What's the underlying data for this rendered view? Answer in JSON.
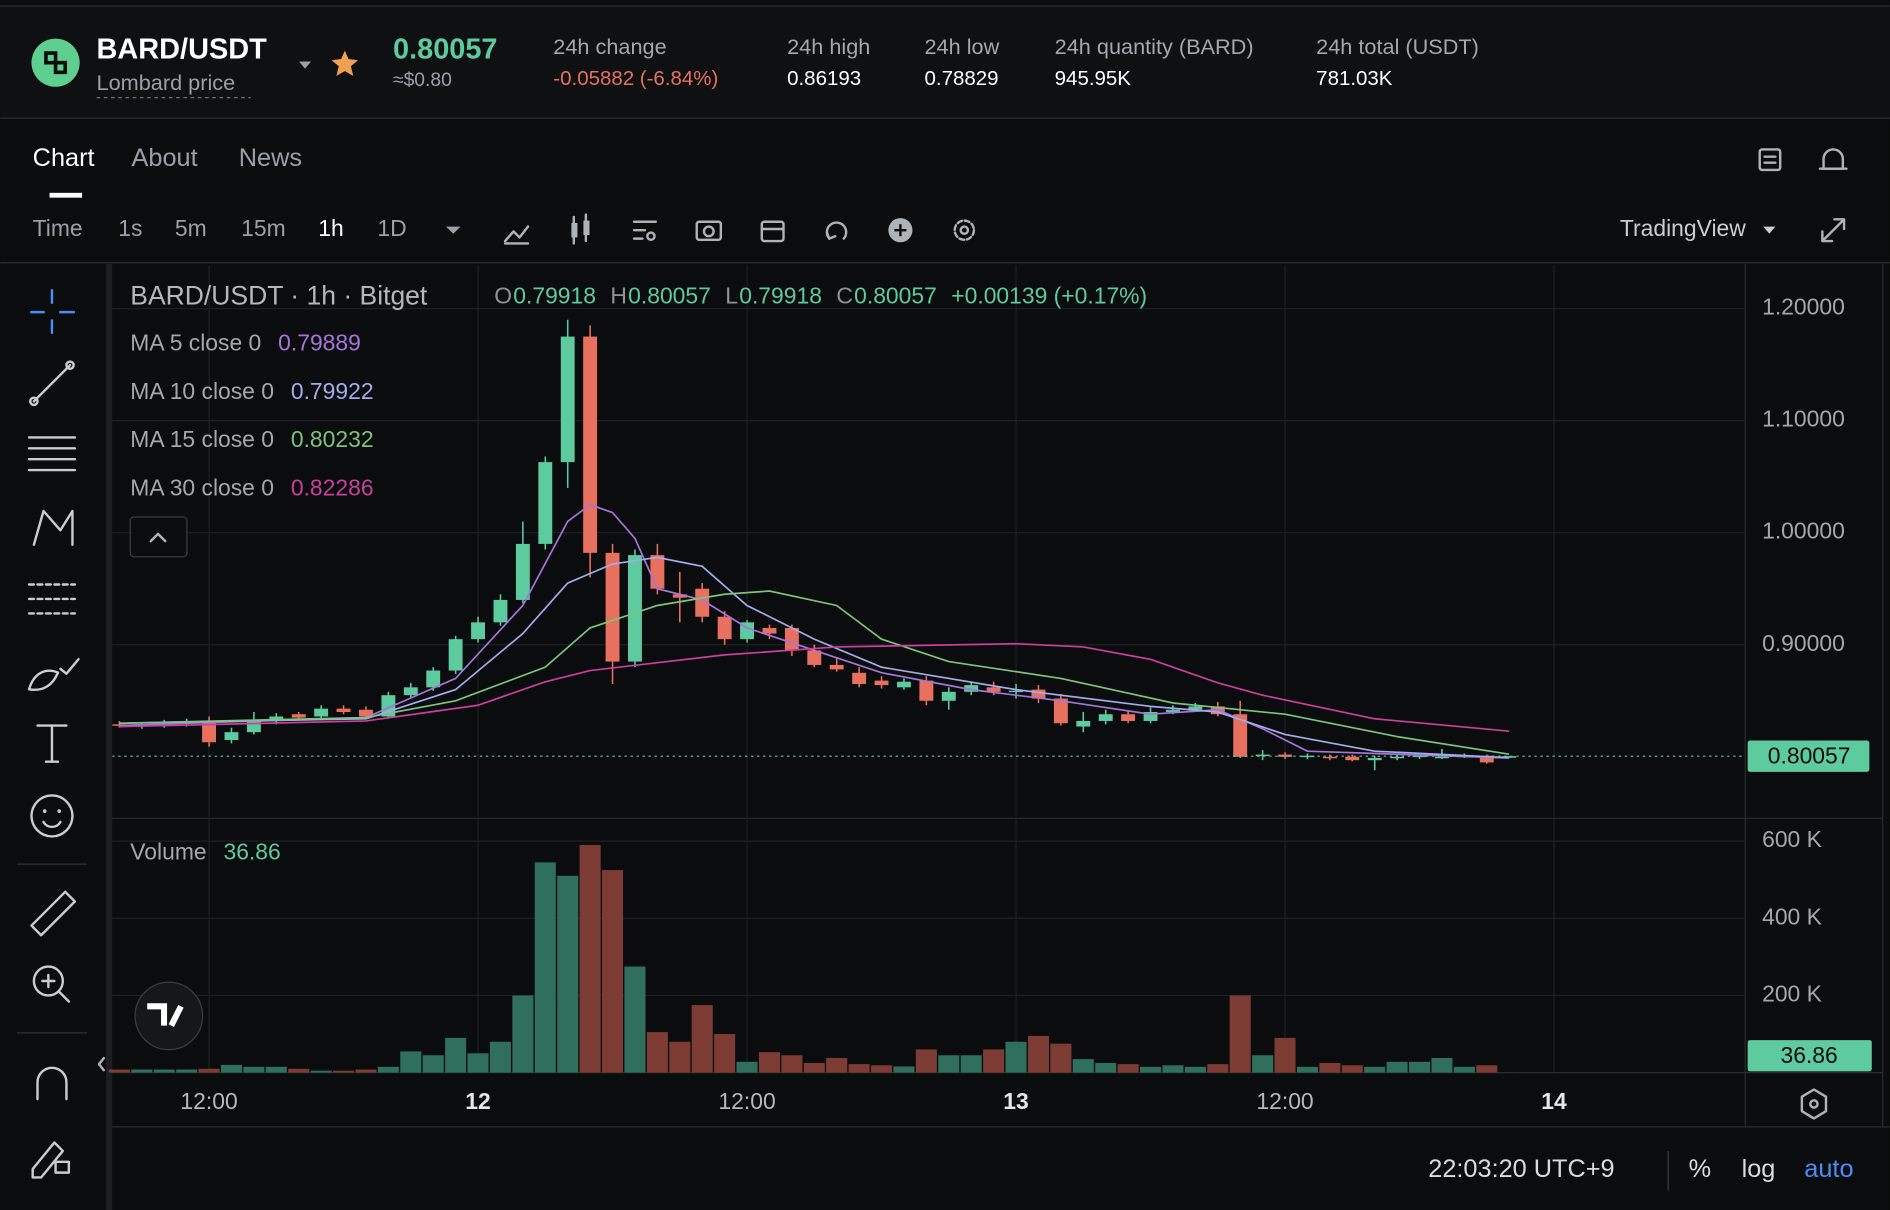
{
  "header": {
    "pair": "BARD/USDT",
    "subtitle": "Lombard price",
    "price": "0.80057",
    "price_usd": "≈$0.80",
    "stats": [
      {
        "label": "24h change",
        "value": "-0.05882 (-6.84%)"
      },
      {
        "label": "24h high",
        "value": "0.86193"
      },
      {
        "label": "24h low",
        "value": "0.78829"
      },
      {
        "label": "24h quantity (BARD)",
        "value": "945.95K"
      },
      {
        "label": "24h total (USDT)",
        "value": "781.03K"
      }
    ]
  },
  "tabs": [
    "Chart",
    "About",
    "News"
  ],
  "toolbar": {
    "intervals": [
      "Time",
      "1s",
      "5m",
      "15m",
      "1h",
      "1D"
    ],
    "provider": "TradingView"
  },
  "footer": {
    "time": "22:03:20 UTC+9",
    "percent": "%",
    "log": "log",
    "auto": "auto"
  },
  "chart_data": {
    "type": "candlestick",
    "title": "BARD/USDT · 1h · Bitget",
    "ohlc_labels": [
      "O",
      "H",
      "L",
      "C"
    ],
    "change": "+0.00139 (+0.17%)",
    "up_color": "#5ecaa0",
    "down_color": "#e8705f",
    "volume_up_color": "#2f6f5b",
    "volume_down_color": "#7c3c33",
    "grid": true,
    "open": [
      0.829,
      0.828,
      0.829,
      0.83,
      0.832,
      0.815,
      0.822,
      0.832,
      0.838,
      0.836,
      0.843,
      0.842,
      0.836,
      0.855,
      0.862,
      0.877,
      0.905,
      0.92,
      0.94,
      0.99,
      1.063,
      1.175,
      0.982,
      0.885,
      0.98,
      0.945,
      0.95,
      0.925,
      0.905,
      0.915,
      0.915,
      0.895,
      0.882,
      0.875,
      0.868,
      0.862,
      0.868,
      0.85,
      0.858,
      0.862,
      0.858,
      0.86,
      0.852,
      0.827,
      0.832,
      0.838,
      0.832,
      0.84,
      0.842,
      0.845,
      0.838,
      0.801,
      0.802,
      0.8,
      0.8,
      0.8,
      0.797,
      0.799,
      0.8,
      0.8,
      0.801,
      0.801,
      0.79918
    ],
    "high": [
      0.832,
      0.831,
      0.833,
      0.834,
      0.836,
      0.826,
      0.84,
      0.839,
      0.84,
      0.846,
      0.846,
      0.845,
      0.858,
      0.866,
      0.88,
      0.908,
      0.925,
      0.945,
      1.01,
      1.068,
      1.19,
      1.185,
      0.99,
      0.985,
      0.99,
      0.965,
      0.955,
      0.93,
      0.922,
      0.918,
      0.918,
      0.9,
      0.888,
      0.88,
      0.872,
      0.87,
      0.872,
      0.862,
      0.866,
      0.867,
      0.865,
      0.864,
      0.856,
      0.84,
      0.842,
      0.841,
      0.844,
      0.846,
      0.848,
      0.849,
      0.85,
      0.806,
      0.804,
      0.803,
      0.802,
      0.802,
      0.801,
      0.803,
      0.802,
      0.807,
      0.803,
      0.802,
      0.80057
    ],
    "low": [
      0.826,
      0.825,
      0.826,
      0.827,
      0.809,
      0.812,
      0.82,
      0.829,
      0.833,
      0.834,
      0.838,
      0.834,
      0.834,
      0.852,
      0.859,
      0.874,
      0.902,
      0.917,
      0.937,
      0.985,
      1.04,
      0.96,
      0.865,
      0.88,
      0.945,
      0.92,
      0.92,
      0.9,
      0.902,
      0.905,
      0.89,
      0.88,
      0.876,
      0.862,
      0.861,
      0.86,
      0.846,
      0.842,
      0.855,
      0.855,
      0.852,
      0.848,
      0.828,
      0.822,
      0.829,
      0.83,
      0.83,
      0.838,
      0.84,
      0.836,
      0.799,
      0.797,
      0.798,
      0.798,
      0.797,
      0.796,
      0.788,
      0.797,
      0.798,
      0.798,
      0.799,
      0.794,
      0.79918
    ],
    "close": [
      0.828,
      0.829,
      0.83,
      0.831,
      0.813,
      0.822,
      0.832,
      0.836,
      0.835,
      0.843,
      0.84,
      0.836,
      0.855,
      0.862,
      0.877,
      0.905,
      0.92,
      0.94,
      0.99,
      1.063,
      1.175,
      0.982,
      0.885,
      0.98,
      0.95,
      0.942,
      0.925,
      0.905,
      0.92,
      0.91,
      0.895,
      0.882,
      0.878,
      0.865,
      0.864,
      0.867,
      0.85,
      0.858,
      0.864,
      0.858,
      0.859,
      0.852,
      0.83,
      0.832,
      0.838,
      0.832,
      0.84,
      0.842,
      0.845,
      0.838,
      0.8,
      0.802,
      0.8,
      0.801,
      0.799,
      0.797,
      0.799,
      0.8,
      0.801,
      0.8,
      0.801,
      0.795,
      0.80057
    ],
    "ylim": [
      0.7462,
      1.2366
    ],
    "yticks": [
      {
        "value": 0.9,
        "label": "0.90000"
      },
      {
        "value": 1.0,
        "label": "1.00000"
      },
      {
        "value": 1.1,
        "label": "1.10000"
      },
      {
        "value": 1.2,
        "label": "1.20000"
      }
    ],
    "xlim": [
      -0.32,
      72.53
    ],
    "xticks": [
      {
        "value": 4,
        "label": "12:00"
      },
      {
        "value": 16,
        "label": "12"
      },
      {
        "value": 28,
        "label": "12:00"
      },
      {
        "value": 40,
        "label": "13"
      },
      {
        "value": 52,
        "label": "12:00"
      },
      {
        "value": 64,
        "label": "14"
      }
    ],
    "series": [
      {
        "name": "MA 5 close 0",
        "color": "#a774dc",
        "x": [
          0,
          11,
          15,
          18,
          20,
          21,
          22,
          23,
          24,
          26,
          28,
          31,
          34,
          38,
          42,
          46,
          49,
          51,
          53,
          62
        ],
        "values": [
          0.828,
          0.835,
          0.87,
          0.935,
          1.01,
          1.025,
          1.018,
          0.995,
          0.95,
          0.94,
          0.915,
          0.895,
          0.875,
          0.86,
          0.85,
          0.838,
          0.842,
          0.825,
          0.805,
          0.79889
        ]
      },
      {
        "name": "MA 10 close 0",
        "color": "#a3acec",
        "x": [
          0,
          11,
          15,
          18,
          20,
          22,
          24,
          26,
          28,
          31,
          34,
          40,
          46,
          49,
          52,
          56,
          62
        ],
        "values": [
          0.83,
          0.834,
          0.86,
          0.91,
          0.955,
          0.972,
          0.978,
          0.97,
          0.935,
          0.905,
          0.88,
          0.86,
          0.845,
          0.84,
          0.82,
          0.805,
          0.79922
        ]
      },
      {
        "name": "MA 15 close 0",
        "color": "#7cc47e",
        "x": [
          0,
          11,
          15,
          19,
          21,
          24,
          27,
          29,
          32,
          34,
          37,
          42,
          47,
          52,
          57,
          62
        ],
        "values": [
          0.83,
          0.835,
          0.85,
          0.88,
          0.915,
          0.935,
          0.945,
          0.948,
          0.935,
          0.905,
          0.885,
          0.87,
          0.848,
          0.838,
          0.818,
          0.80232
        ]
      },
      {
        "name": "MA 30 close 0",
        "color": "#cc3f9e",
        "x": [
          0,
          11,
          16,
          19,
          21,
          27,
          32,
          40,
          43,
          46,
          49,
          51,
          56,
          62
        ],
        "values": [
          0.827,
          0.832,
          0.846,
          0.867,
          0.877,
          0.891,
          0.898,
          0.901,
          0.898,
          0.887,
          0.866,
          0.855,
          0.834,
          0.82286
        ]
      }
    ],
    "volume_label": "Volume",
    "volume": [
      8000,
      8000,
      8000,
      8000,
      10000,
      20000,
      15000,
      15000,
      10000,
      5000,
      5000,
      8000,
      15000,
      55000,
      45000,
      90000,
      50000,
      80000,
      200000,
      545000,
      510000,
      590000,
      525000,
      275000,
      105000,
      80000,
      175000,
      100000,
      28000,
      53000,
      45000,
      25000,
      38000,
      22000,
      19000,
      16000,
      60000,
      45000,
      45000,
      60000,
      80000,
      95000,
      75000,
      35000,
      25000,
      22000,
      15000,
      19000,
      15000,
      22000,
      200000,
      45000,
      90000,
      15000,
      25000,
      19000,
      15000,
      28000,
      28000,
      38000,
      15000,
      19000,
      36.86
    ],
    "volume_ylim": [
      0,
      656000
    ],
    "volume_yticks": [
      {
        "value": 200000,
        "label": "200 K"
      },
      {
        "value": 400000,
        "label": "400 K"
      },
      {
        "value": 600000,
        "label": "600 K"
      }
    ]
  }
}
